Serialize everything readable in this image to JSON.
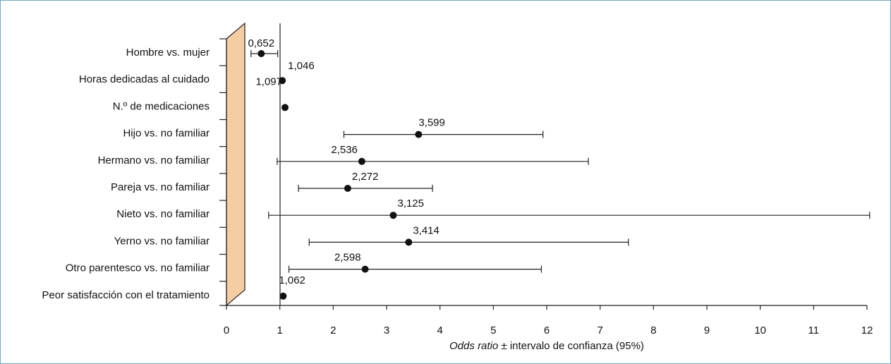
{
  "colors": {
    "frame_border": "#6fa9c9",
    "panel_fill": "#f5cda3",
    "line": "#222222",
    "point": "#111111"
  },
  "chart_data": {
    "type": "scatter",
    "subtype": "forest-plot",
    "title": "",
    "xlabel_italic": "Odds ratio",
    "xlabel_rest": " ± intervalo de confianza (95%)",
    "xlim": [
      0,
      12
    ],
    "xticks": [
      0,
      1,
      2,
      3,
      4,
      5,
      6,
      7,
      8,
      9,
      10,
      11,
      12
    ],
    "reference_line": 1,
    "grid": false,
    "categories": [
      "Hombre vs. mujer",
      "Horas dedicadas al cuidado",
      "N.º de medicaciones",
      "Hijo vs. no familiar",
      "Hermano vs. no familiar",
      "Pareja vs. no familiar",
      "Nieto vs. no familiar",
      "Yerno vs. no familiar",
      "Otro parentesco vs. no familiar",
      "Peor satisfacción con el tratamiento"
    ],
    "values": [
      0.652,
      1.046,
      1.097,
      3.599,
      2.536,
      2.272,
      3.125,
      3.414,
      2.598,
      1.062
    ],
    "value_labels": [
      "0,652",
      "1,046",
      "1,097",
      "3,599",
      "2,536",
      "2,272",
      "3,125",
      "3,414",
      "2,598",
      "1,062"
    ],
    "ci_low": [
      0.46,
      null,
      null,
      2.2,
      0.95,
      1.35,
      0.79,
      1.55,
      1.17,
      null
    ],
    "ci_high": [
      0.96,
      null,
      null,
      5.93,
      6.78,
      3.86,
      12.05,
      7.53,
      5.9,
      null
    ]
  }
}
